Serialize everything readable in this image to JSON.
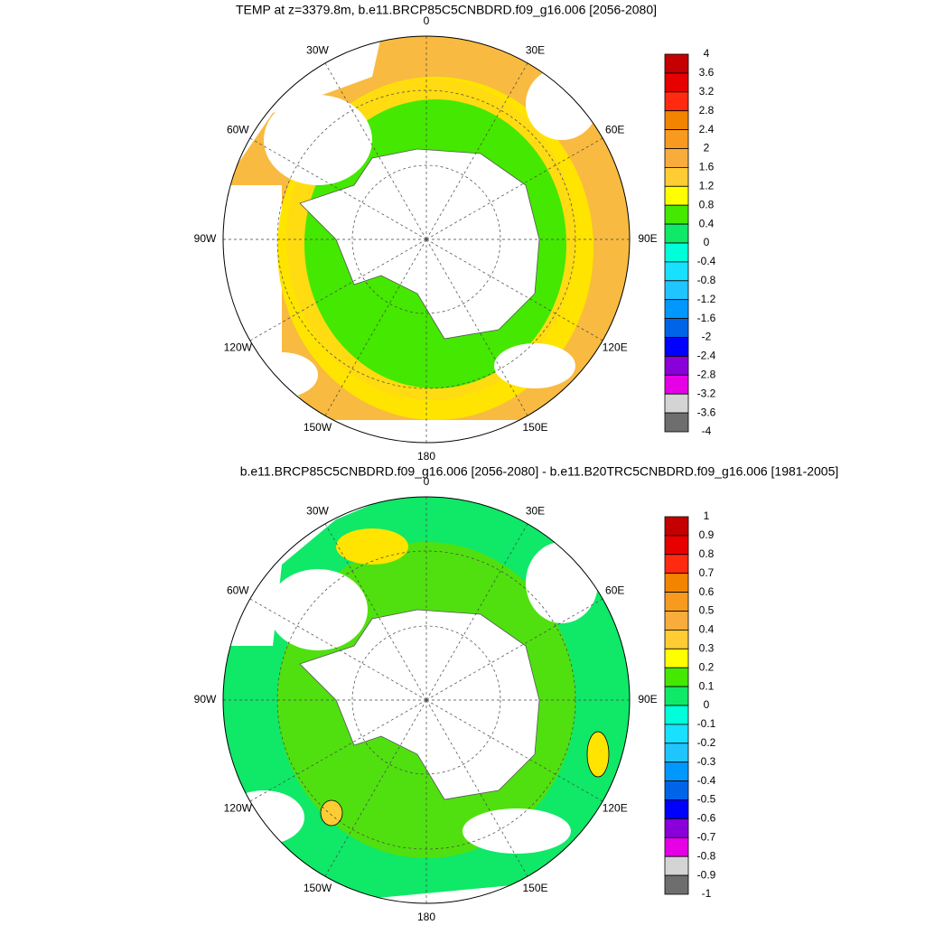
{
  "panels": [
    {
      "title": "TEMP at z=3379.8m, b.e11.BRCP85C5CNBDRD.f09_g16.006 [2056-2080]",
      "lon_labels": [
        "0",
        "30E",
        "60E",
        "90E",
        "120E",
        "150E",
        "180",
        "150W",
        "120W",
        "90W",
        "60W",
        "30W"
      ],
      "colorbar": {
        "levels": [
          4,
          3.6,
          3.2,
          2.8,
          2.4,
          2,
          1.6,
          1.2,
          0.8,
          0.4,
          0,
          -0.4,
          -0.8,
          -1.2,
          -1.6,
          -2,
          -2.4,
          -2.8,
          -3.2,
          -3.6,
          -4
        ],
        "colors": [
          "#c40000",
          "#e60000",
          "#ff2a10",
          "#f28500",
          "#f89a20",
          "#f8ac3c",
          "#ffcc33",
          "#ffff00",
          "#44e800",
          "#10e868",
          "#00ffd8",
          "#18e0ff",
          "#20c4ff",
          "#0098ff",
          "#0064e8",
          "#0000ff",
          "#8a00d8",
          "#e600e6",
          "#d4d4d4",
          "#6e6e6e"
        ]
      }
    },
    {
      "title": "b.e11.BRCP85C5CNBDRD.f09_g16.006 [2056-2080] - b.e11.B20TRC5CNBDRD.f09_g16.006 [1981-2005]",
      "lon_labels": [
        "0",
        "30E",
        "60E",
        "90E",
        "120E",
        "150E",
        "180",
        "150W",
        "120W",
        "90W",
        "60W",
        "30W"
      ],
      "colorbar": {
        "levels": [
          1,
          0.9,
          0.8,
          0.7,
          0.6,
          0.5,
          0.4,
          0.3,
          0.2,
          0.1,
          0,
          -0.1,
          -0.2,
          -0.3,
          -0.4,
          -0.5,
          -0.6,
          -0.7,
          -0.8,
          -0.9,
          -1
        ],
        "colors": [
          "#c40000",
          "#e60000",
          "#ff2a10",
          "#f28500",
          "#f89a20",
          "#f8ac3c",
          "#ffcc33",
          "#ffff00",
          "#44e800",
          "#10e868",
          "#00ffd8",
          "#18e0ff",
          "#20c4ff",
          "#0098ff",
          "#0064e8",
          "#0000ff",
          "#8a00d8",
          "#e600e6",
          "#d4d4d4",
          "#6e6e6e"
        ]
      }
    }
  ]
}
